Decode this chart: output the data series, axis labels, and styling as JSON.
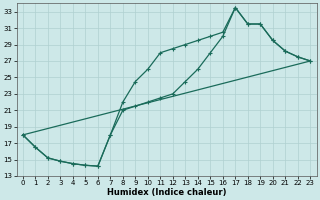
{
  "xlabel": "Humidex (Indice chaleur)",
  "xlim": [
    -0.5,
    23.5
  ],
  "ylim": [
    13,
    34
  ],
  "yticks": [
    13,
    15,
    17,
    19,
    21,
    23,
    25,
    27,
    29,
    31,
    33
  ],
  "xticks": [
    0,
    1,
    2,
    3,
    4,
    5,
    6,
    7,
    8,
    9,
    10,
    11,
    12,
    13,
    14,
    15,
    16,
    17,
    18,
    19,
    20,
    21,
    22,
    23
  ],
  "bg_color": "#cde8e8",
  "grid_color": "#b0d0d0",
  "line_color": "#1a6b5a",
  "line1_y": [
    18.0,
    16.5,
    15.2,
    14.8,
    14.5,
    14.3,
    14.2,
    18.0,
    22.0,
    24.5,
    26.0,
    28.0,
    28.5,
    29.0,
    29.5,
    30.0,
    30.5,
    33.5,
    31.5,
    31.5,
    29.5,
    28.2,
    27.5,
    27.0
  ],
  "line2_y": [
    18.0,
    16.5,
    15.2,
    14.8,
    14.5,
    14.3,
    14.2,
    18.0,
    21.0,
    21.5,
    22.0,
    22.5,
    23.0,
    24.5,
    26.0,
    28.0,
    30.0,
    33.5,
    31.5,
    31.5,
    29.5,
    28.2,
    27.5,
    27.0
  ],
  "line3_y": [
    18.0,
    27.0
  ]
}
